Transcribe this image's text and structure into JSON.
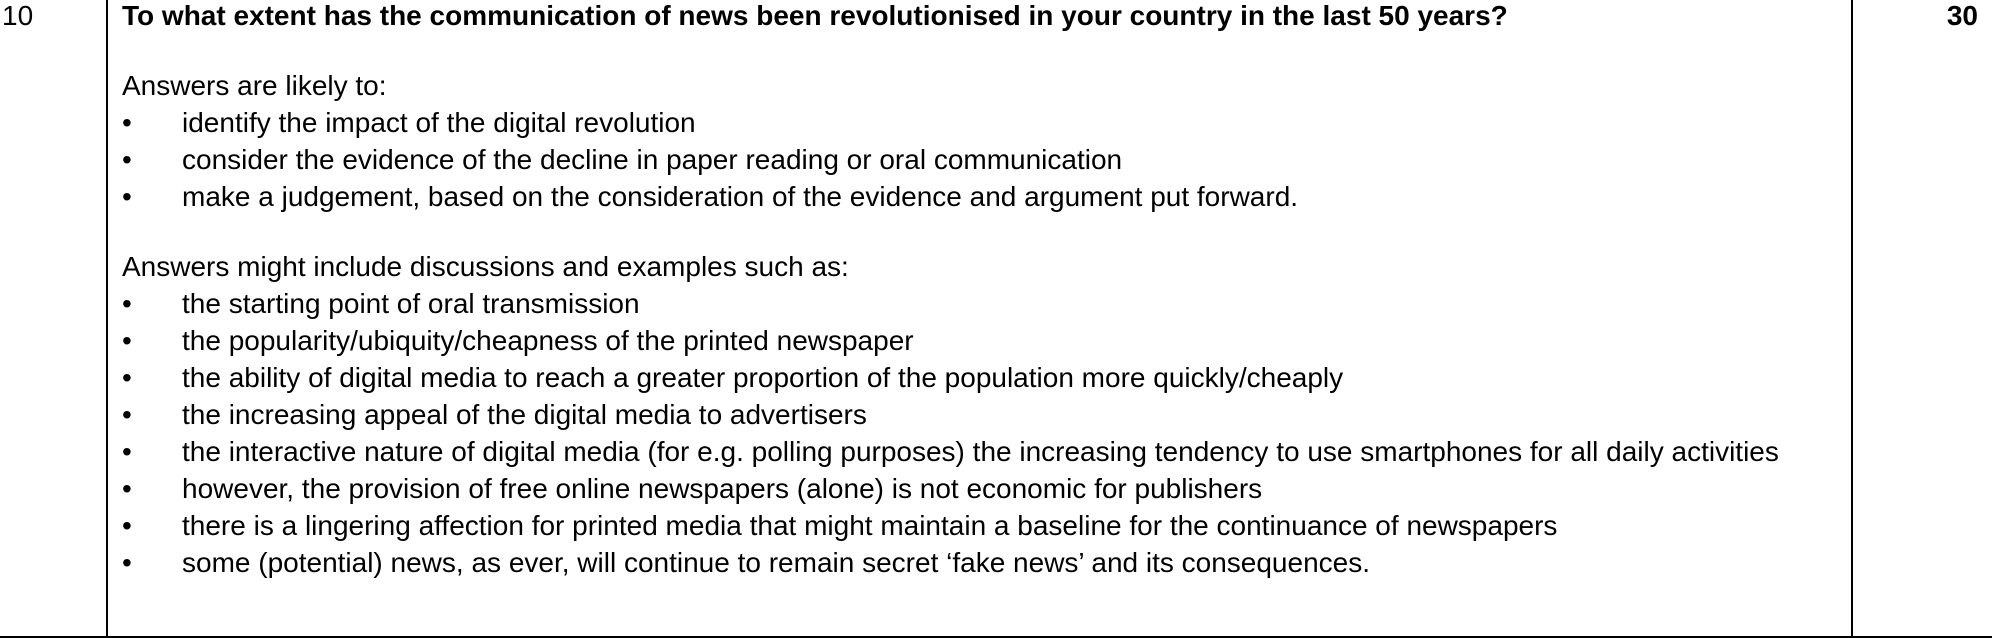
{
  "question_number": "10",
  "marks": "30",
  "question": "To what extent has the communication of news been revolutionised in your country in the last 50 years?",
  "section1": {
    "intro": "Answers are likely to:",
    "bullets": [
      "identify the impact of the digital revolution",
      "consider the evidence of the decline in paper reading or oral communication",
      "make a judgement, based on the consideration of the evidence and argument put forward."
    ]
  },
  "section2": {
    "intro": "Answers might include discussions and examples such as:",
    "bullets": [
      "the starting point of oral transmission",
      "the popularity/ubiquity/cheapness of the printed newspaper",
      "the ability of digital media to reach a greater proportion of the population more quickly/cheaply",
      "the increasing appeal of the digital media to advertisers",
      "the interactive nature of digital media (for e.g. polling purposes) the increasing tendency to use smartphones for all daily activities",
      "however, the provision of free online newspapers (alone) is not economic for publishers",
      "there is a lingering affection for printed media that might maintain a baseline for the continuance of newspapers",
      "some (potential) news, as ever, will continue to remain secret ‘fake news’ and its consequences."
    ]
  }
}
